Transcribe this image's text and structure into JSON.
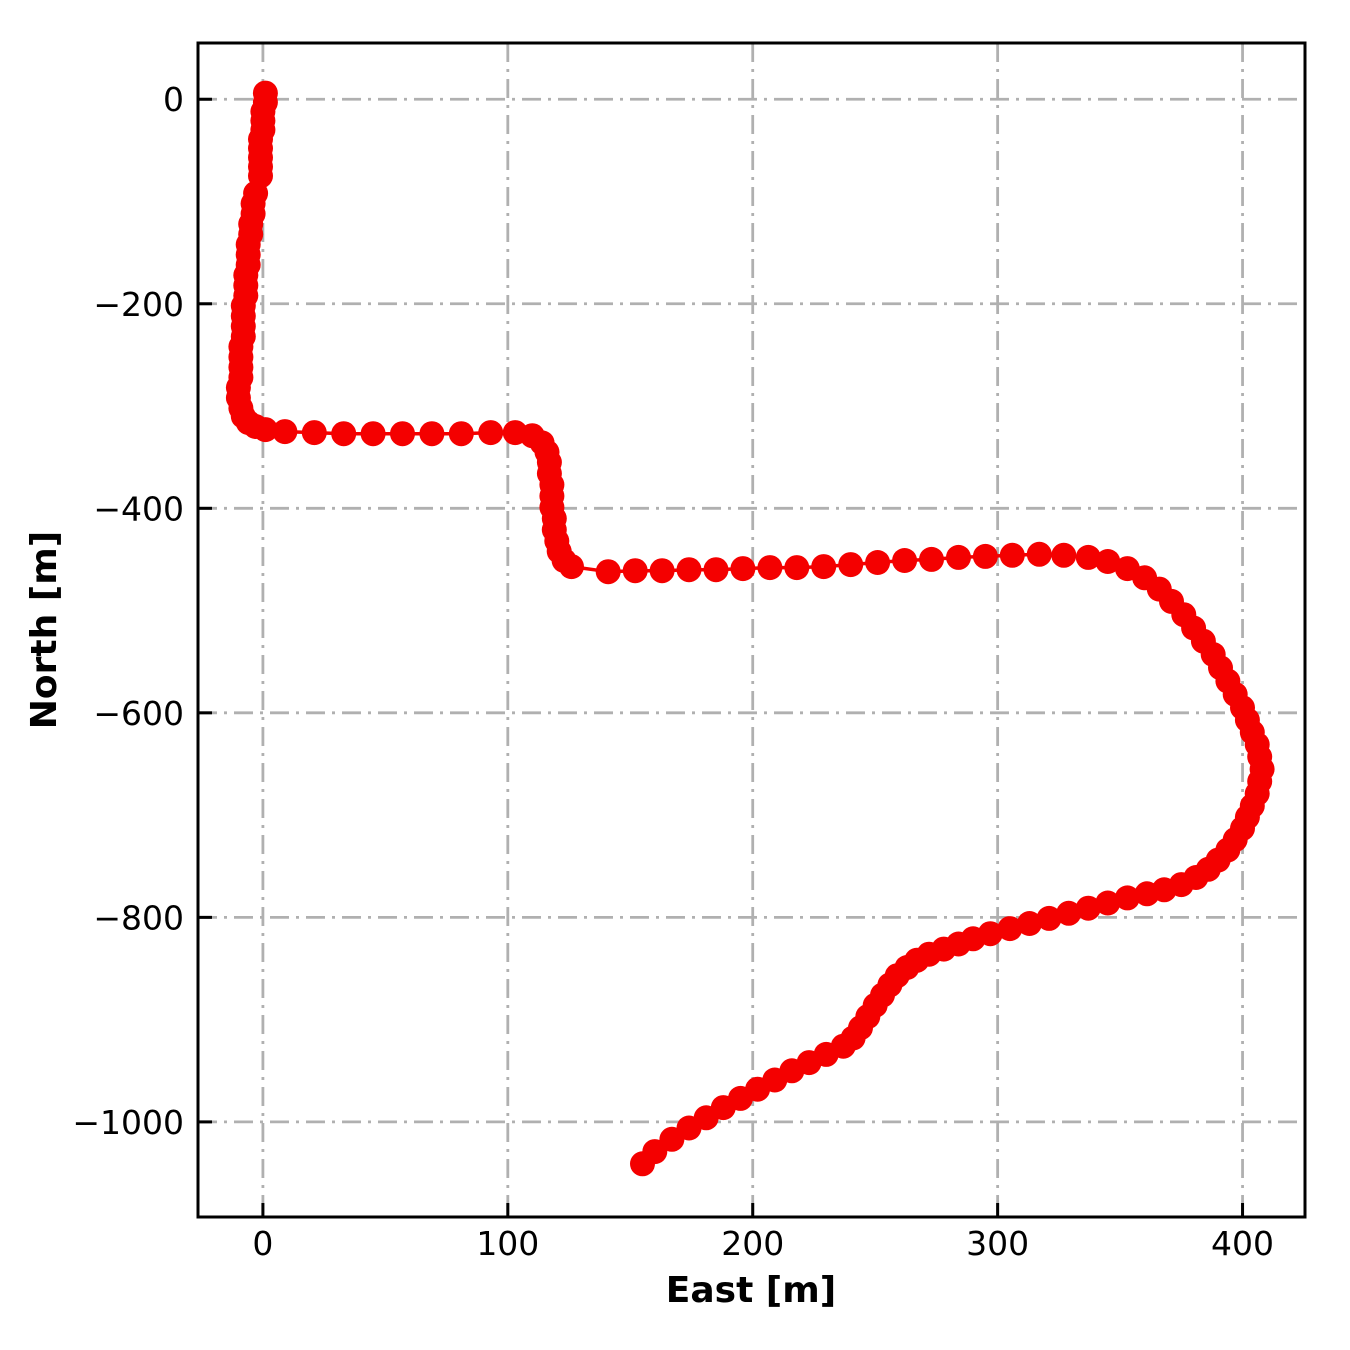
{
  "figure": {
    "background": "#ffffff"
  },
  "chart_data": {
    "type": "scatter",
    "series_name": "vehicle-trajectory",
    "title": "",
    "xlabel": "East [m]",
    "ylabel": "North [m]",
    "xlim": [
      -26.5,
      425.5
    ],
    "ylim": [
      -1093,
      55
    ],
    "xticks": [
      0,
      100,
      200,
      300,
      400
    ],
    "yticks": [
      0,
      -200,
      -400,
      -600,
      -800,
      -1000
    ],
    "grid": true,
    "grid_style": "dash-dot",
    "grid_color": "#b0b0b0",
    "marker_color": "#f40000",
    "line_color": "#f40000",
    "axis_color": "#000000",
    "marker_radius_px": 12.5,
    "points": [
      [
        1,
        6
      ],
      [
        1,
        -3
      ],
      [
        0,
        -12
      ],
      [
        0,
        -21
      ],
      [
        0,
        -30
      ],
      [
        -1,
        -39
      ],
      [
        -1,
        -48
      ],
      [
        -1,
        -57
      ],
      [
        -1,
        -66
      ],
      [
        -1,
        -75
      ],
      [
        -3,
        -92
      ],
      [
        -4,
        -102
      ],
      [
        -4,
        -112
      ],
      [
        -5,
        -122
      ],
      [
        -5,
        -132
      ],
      [
        -6,
        -142
      ],
      [
        -6,
        -152
      ],
      [
        -6,
        -162
      ],
      [
        -7,
        -172
      ],
      [
        -7,
        -182
      ],
      [
        -7,
        -192
      ],
      [
        -8,
        -202
      ],
      [
        -8,
        -212
      ],
      [
        -8,
        -222
      ],
      [
        -8,
        -232
      ],
      [
        -9,
        -242
      ],
      [
        -9,
        -252
      ],
      [
        -9,
        -262
      ],
      [
        -9,
        -272
      ],
      [
        -10,
        -282
      ],
      [
        -10,
        -292
      ],
      [
        -9,
        -302
      ],
      [
        -8,
        -310
      ],
      [
        -6,
        -316
      ],
      [
        -3,
        -320
      ],
      [
        1,
        -323
      ],
      [
        9,
        -325
      ],
      [
        21,
        -326
      ],
      [
        33,
        -327
      ],
      [
        45,
        -327
      ],
      [
        57,
        -327
      ],
      [
        69,
        -327
      ],
      [
        81,
        -327
      ],
      [
        93,
        -326
      ],
      [
        103,
        -326
      ],
      [
        110,
        -329
      ],
      [
        114,
        -336
      ],
      [
        116,
        -345
      ],
      [
        117,
        -355
      ],
      [
        117,
        -366
      ],
      [
        118,
        -377
      ],
      [
        118,
        -388
      ],
      [
        118,
        -399
      ],
      [
        119,
        -410
      ],
      [
        119,
        -421
      ],
      [
        120,
        -432
      ],
      [
        121,
        -442
      ],
      [
        123,
        -451
      ],
      [
        126,
        -457
      ],
      [
        141,
        -462
      ],
      [
        152,
        -461
      ],
      [
        163,
        -461
      ],
      [
        174,
        -460
      ],
      [
        185,
        -460
      ],
      [
        196,
        -459
      ],
      [
        207,
        -458
      ],
      [
        218,
        -458
      ],
      [
        229,
        -457
      ],
      [
        240,
        -455
      ],
      [
        251,
        -453
      ],
      [
        262,
        -451
      ],
      [
        273,
        -450
      ],
      [
        284,
        -448
      ],
      [
        295,
        -447
      ],
      [
        306,
        -446
      ],
      [
        317,
        -445
      ],
      [
        327,
        -446
      ],
      [
        337,
        -448
      ],
      [
        345,
        -452
      ],
      [
        353,
        -459
      ],
      [
        360,
        -468
      ],
      [
        366,
        -479
      ],
      [
        371,
        -491
      ],
      [
        376,
        -504
      ],
      [
        380,
        -517
      ],
      [
        384,
        -530
      ],
      [
        388,
        -543
      ],
      [
        391,
        -556
      ],
      [
        394,
        -569
      ],
      [
        397,
        -582
      ],
      [
        400,
        -595
      ],
      [
        402,
        -607
      ],
      [
        404,
        -619
      ],
      [
        406,
        -631
      ],
      [
        407,
        -643
      ],
      [
        408,
        -655
      ],
      [
        407,
        -667
      ],
      [
        406,
        -679
      ],
      [
        404,
        -691
      ],
      [
        402,
        -702
      ],
      [
        400,
        -713
      ],
      [
        397,
        -724
      ],
      [
        394,
        -734
      ],
      [
        390,
        -744
      ],
      [
        386,
        -753
      ],
      [
        381,
        -761
      ],
      [
        375,
        -768
      ],
      [
        368,
        -773
      ],
      [
        361,
        -777
      ],
      [
        353,
        -781
      ],
      [
        345,
        -786
      ],
      [
        337,
        -791
      ],
      [
        329,
        -796
      ],
      [
        321,
        -801
      ],
      [
        313,
        -806
      ],
      [
        305,
        -811
      ],
      [
        297,
        -816
      ],
      [
        290,
        -821
      ],
      [
        284,
        -826
      ],
      [
        278,
        -831
      ],
      [
        272,
        -836
      ],
      [
        267,
        -842
      ],
      [
        263,
        -849
      ],
      [
        259,
        -857
      ],
      [
        256,
        -866
      ],
      [
        253,
        -876
      ],
      [
        250,
        -886
      ],
      [
        247,
        -897
      ],
      [
        244,
        -908
      ],
      [
        241,
        -918
      ],
      [
        237,
        -926
      ],
      [
        230,
        -934
      ],
      [
        223,
        -942
      ],
      [
        216,
        -950
      ],
      [
        209,
        -959
      ],
      [
        202,
        -968
      ],
      [
        195,
        -977
      ],
      [
        188,
        -986
      ],
      [
        181,
        -996
      ],
      [
        174,
        -1006
      ],
      [
        167,
        -1017
      ],
      [
        160,
        -1029
      ],
      [
        155,
        -1041
      ]
    ]
  }
}
